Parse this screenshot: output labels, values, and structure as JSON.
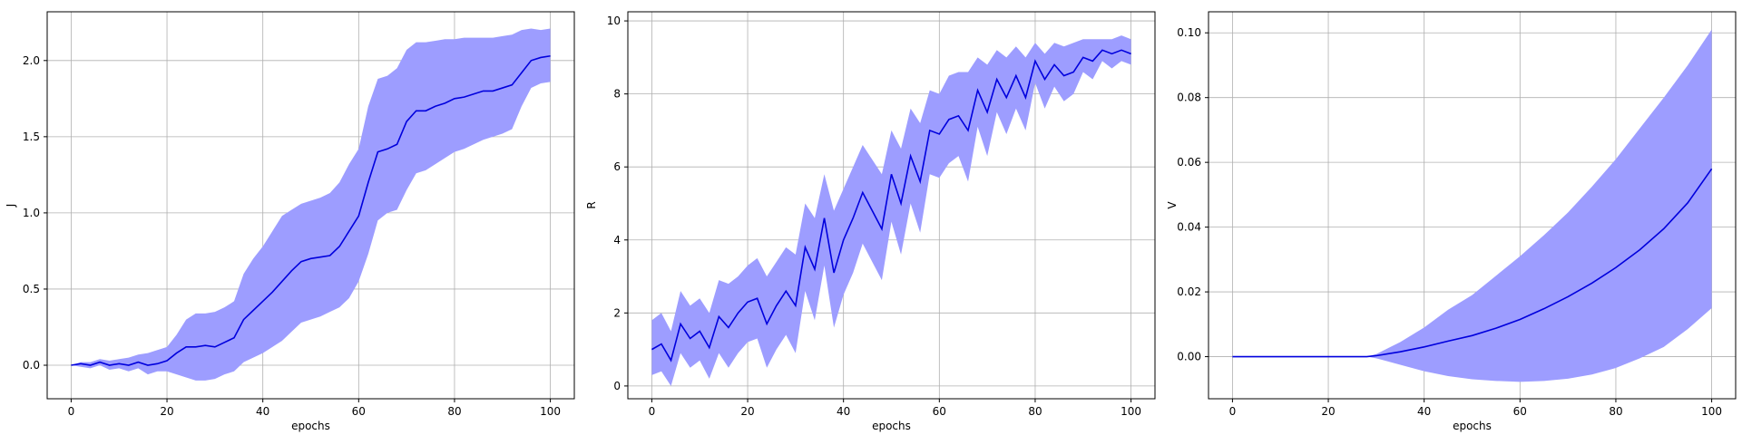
{
  "chart_data": [
    {
      "type": "line",
      "xlabel": "epochs",
      "ylabel": "J",
      "xlim": [
        -5,
        105
      ],
      "ylim": [
        -0.22,
        2.32
      ],
      "xticks": [
        0,
        20,
        40,
        60,
        80,
        100
      ],
      "yticks": [
        0.0,
        0.5,
        1.0,
        1.5,
        2.0
      ],
      "ytick_labels": [
        "0.0",
        "0.5",
        "1.0",
        "1.5",
        "2.0"
      ],
      "grid": true,
      "colors": {
        "line": "#0000dd",
        "band": "#9d9dff"
      },
      "x": [
        0,
        2,
        4,
        6,
        8,
        10,
        12,
        14,
        16,
        18,
        20,
        22,
        24,
        26,
        28,
        30,
        32,
        34,
        36,
        38,
        40,
        42,
        44,
        46,
        48,
        50,
        52,
        54,
        56,
        58,
        60,
        62,
        64,
        66,
        68,
        70,
        72,
        74,
        76,
        78,
        80,
        82,
        84,
        86,
        88,
        90,
        92,
        94,
        96,
        98,
        100
      ],
      "series": [
        {
          "mean": [
            0.0,
            0.01,
            0.0,
            0.02,
            0.0,
            0.01,
            0.0,
            0.02,
            0.0,
            0.01,
            0.03,
            0.08,
            0.12,
            0.12,
            0.13,
            0.12,
            0.15,
            0.18,
            0.3,
            0.36,
            0.42,
            0.48,
            0.55,
            0.62,
            0.68,
            0.7,
            0.71,
            0.72,
            0.78,
            0.88,
            0.98,
            1.2,
            1.4,
            1.42,
            1.45,
            1.6,
            1.67,
            1.67,
            1.7,
            1.72,
            1.75,
            1.76,
            1.78,
            1.8,
            1.8,
            1.82,
            1.84,
            1.92,
            2.0,
            2.02,
            2.03
          ],
          "upper": [
            0.0,
            0.02,
            0.02,
            0.04,
            0.03,
            0.04,
            0.05,
            0.07,
            0.08,
            0.1,
            0.12,
            0.2,
            0.3,
            0.34,
            0.34,
            0.35,
            0.38,
            0.42,
            0.6,
            0.7,
            0.78,
            0.88,
            0.98,
            1.02,
            1.06,
            1.08,
            1.1,
            1.13,
            1.2,
            1.32,
            1.42,
            1.7,
            1.88,
            1.9,
            1.95,
            2.07,
            2.12,
            2.12,
            2.13,
            2.14,
            2.14,
            2.15,
            2.15,
            2.15,
            2.15,
            2.16,
            2.17,
            2.2,
            2.21,
            2.2,
            2.21
          ],
          "lower": [
            0.0,
            -0.01,
            -0.02,
            0.0,
            -0.03,
            -0.02,
            -0.04,
            -0.02,
            -0.06,
            -0.04,
            -0.04,
            -0.06,
            -0.08,
            -0.1,
            -0.1,
            -0.09,
            -0.06,
            -0.04,
            0.02,
            0.05,
            0.08,
            0.12,
            0.16,
            0.22,
            0.28,
            0.3,
            0.32,
            0.35,
            0.38,
            0.44,
            0.55,
            0.73,
            0.95,
            1.0,
            1.02,
            1.15,
            1.26,
            1.28,
            1.32,
            1.36,
            1.4,
            1.42,
            1.45,
            1.48,
            1.5,
            1.52,
            1.55,
            1.7,
            1.82,
            1.85,
            1.86
          ]
        }
      ]
    },
    {
      "type": "line",
      "xlabel": "epochs",
      "ylabel": "R",
      "xlim": [
        -5,
        105
      ],
      "ylim": [
        -0.35,
        10.25
      ],
      "xticks": [
        0,
        20,
        40,
        60,
        80,
        100
      ],
      "yticks": [
        0,
        2,
        4,
        6,
        8,
        10
      ],
      "ytick_labels": [
        "0",
        "2",
        "4",
        "6",
        "8",
        "10"
      ],
      "grid": true,
      "colors": {
        "line": "#0000dd",
        "band": "#9d9dff"
      },
      "x": [
        0,
        2,
        4,
        6,
        8,
        10,
        12,
        14,
        16,
        18,
        20,
        22,
        24,
        26,
        28,
        30,
        32,
        34,
        36,
        38,
        40,
        42,
        44,
        46,
        48,
        50,
        52,
        54,
        56,
        58,
        60,
        62,
        64,
        66,
        68,
        70,
        72,
        74,
        76,
        78,
        80,
        82,
        84,
        86,
        88,
        90,
        92,
        94,
        96,
        98,
        100
      ],
      "series": [
        {
          "mean": [
            1.0,
            1.15,
            0.7,
            1.7,
            1.3,
            1.5,
            1.05,
            1.9,
            1.6,
            2.0,
            2.3,
            2.4,
            1.7,
            2.2,
            2.6,
            2.2,
            3.8,
            3.2,
            4.6,
            3.1,
            4.0,
            4.6,
            5.3,
            4.8,
            4.3,
            5.8,
            5.0,
            6.3,
            5.6,
            7.0,
            6.9,
            7.3,
            7.4,
            7.0,
            8.1,
            7.5,
            8.4,
            7.9,
            8.5,
            7.9,
            8.9,
            8.4,
            8.8,
            8.5,
            8.6,
            9.0,
            8.9,
            9.2,
            9.1,
            9.2,
            9.1
          ],
          "upper": [
            1.8,
            2.0,
            1.5,
            2.6,
            2.2,
            2.4,
            2.0,
            2.9,
            2.8,
            3.0,
            3.3,
            3.5,
            3.0,
            3.4,
            3.8,
            3.6,
            5.0,
            4.6,
            5.8,
            4.8,
            5.4,
            6.0,
            6.6,
            6.2,
            5.8,
            7.0,
            6.5,
            7.6,
            7.2,
            8.1,
            8.0,
            8.5,
            8.6,
            8.6,
            9.0,
            8.8,
            9.2,
            9.0,
            9.3,
            9.0,
            9.4,
            9.1,
            9.4,
            9.3,
            9.4,
            9.5,
            9.5,
            9.5,
            9.5,
            9.6,
            9.5
          ],
          "lower": [
            0.3,
            0.4,
            0.0,
            0.9,
            0.5,
            0.7,
            0.2,
            0.9,
            0.5,
            0.9,
            1.2,
            1.3,
            0.5,
            1.0,
            1.4,
            0.9,
            2.6,
            1.8,
            3.3,
            1.6,
            2.5,
            3.1,
            3.9,
            3.4,
            2.9,
            4.5,
            3.6,
            5.0,
            4.2,
            5.8,
            5.7,
            6.1,
            6.3,
            5.6,
            7.1,
            6.3,
            7.5,
            6.9,
            7.6,
            7.0,
            8.3,
            7.6,
            8.2,
            7.8,
            8.0,
            8.6,
            8.4,
            8.9,
            8.7,
            8.9,
            8.8
          ]
        }
      ]
    },
    {
      "type": "line",
      "xlabel": "epochs",
      "ylabel": "V",
      "xlim": [
        -5,
        105
      ],
      "ylim": [
        -0.013,
        0.1065
      ],
      "xticks": [
        0,
        20,
        40,
        60,
        80,
        100
      ],
      "yticks": [
        0.0,
        0.02,
        0.04,
        0.06,
        0.08,
        0.1
      ],
      "ytick_labels": [
        "0.00",
        "0.02",
        "0.04",
        "0.06",
        "0.08",
        "0.10"
      ],
      "grid": true,
      "colors": {
        "line": "#0000dd",
        "band": "#9d9dff"
      },
      "x": [
        0,
        10,
        20,
        25,
        28,
        30,
        35,
        40,
        45,
        50,
        55,
        60,
        65,
        70,
        75,
        80,
        85,
        90,
        95,
        100
      ],
      "series": [
        {
          "mean": [
            0.0,
            0.0,
            0.0,
            0.0,
            0.0,
            0.0003,
            0.0015,
            0.003,
            0.0048,
            0.0065,
            0.0088,
            0.0115,
            0.0148,
            0.0185,
            0.0227,
            0.0275,
            0.033,
            0.0395,
            0.0475,
            0.058
          ],
          "upper": [
            0.0,
            0.0,
            0.0,
            0.0,
            0.0,
            0.0008,
            0.0045,
            0.009,
            0.0145,
            0.019,
            0.025,
            0.031,
            0.0375,
            0.0445,
            0.0525,
            0.061,
            0.0705,
            0.08,
            0.09,
            0.101
          ],
          "lower": [
            0.0,
            0.0,
            0.0,
            0.0,
            0.0,
            -0.0005,
            -0.0025,
            -0.0045,
            -0.006,
            -0.007,
            -0.0075,
            -0.0078,
            -0.0075,
            -0.0068,
            -0.0055,
            -0.0035,
            -0.0005,
            0.003,
            0.0085,
            0.015
          ]
        }
      ]
    }
  ]
}
